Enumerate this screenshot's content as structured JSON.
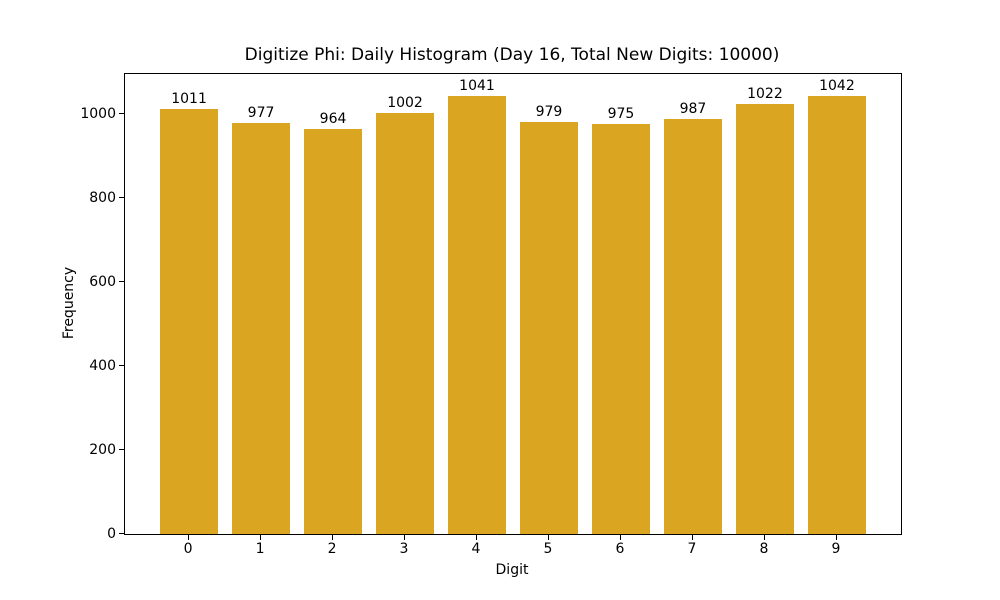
{
  "chart_data": {
    "type": "bar",
    "title": "Digitize Phi: Daily Histogram (Day 16, Total New Digits: 10000)",
    "xlabel": "Digit",
    "ylabel": "Frequency",
    "categories": [
      "0",
      "1",
      "2",
      "3",
      "4",
      "5",
      "6",
      "7",
      "8",
      "9"
    ],
    "values": [
      1011,
      977,
      964,
      1002,
      1041,
      979,
      975,
      987,
      1022,
      1042
    ],
    "bar_value_labels": [
      "1011",
      "977",
      "964",
      "1002",
      "1041",
      "979",
      "975",
      "987",
      "1022",
      "1042"
    ],
    "yticks": [
      "0",
      "200",
      "400",
      "600",
      "800",
      "1000"
    ],
    "ytick_values": [
      0,
      200,
      400,
      600,
      800,
      1000
    ],
    "ylim": [
      0,
      1094
    ],
    "xlim": [
      -0.89,
      9.89
    ],
    "bar_width": 0.8,
    "bar_color": "#DAA520",
    "background_color": "#FFFFFF",
    "grid": false,
    "legend_position": "none"
  }
}
